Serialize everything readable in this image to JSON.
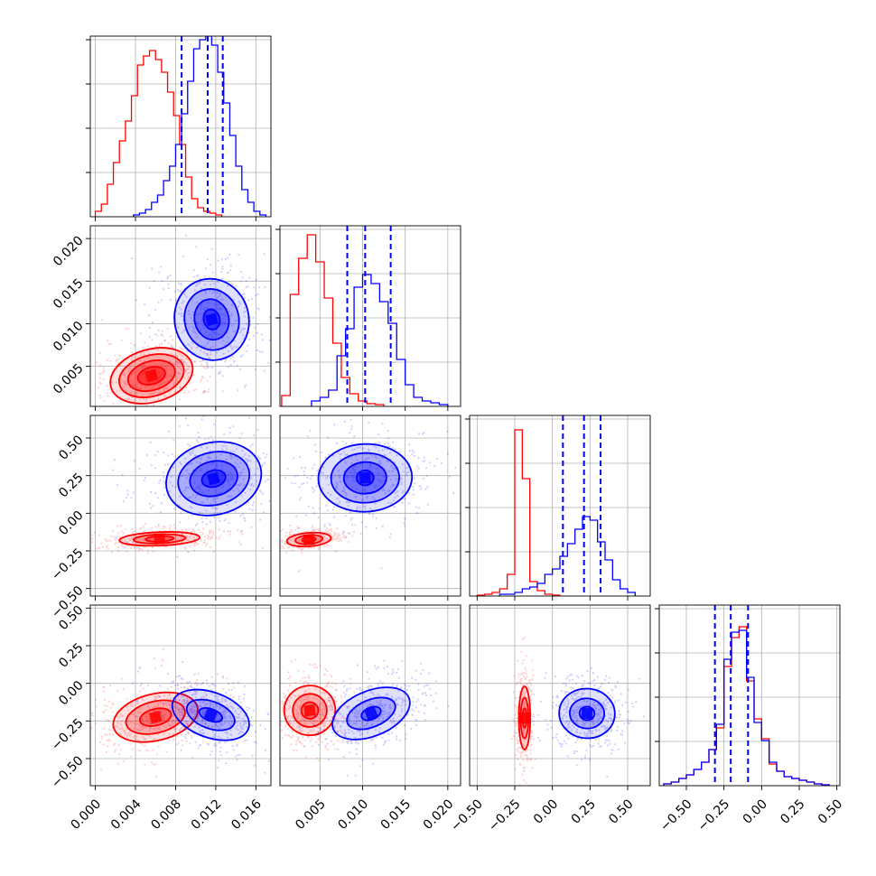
{
  "chart_data": {
    "type": "corner",
    "title": "",
    "colors": {
      "series_a": "#ff0000",
      "series_b": "#0000ff"
    },
    "params": [
      {
        "ticks": [
          "0.000",
          "0.004",
          "0.008",
          "0.012",
          "0.016"
        ],
        "tick_values": [
          0.0,
          0.004,
          0.008,
          0.012,
          0.016
        ],
        "range": [
          -0.0005,
          0.0175
        ]
      },
      {
        "ticks": [
          "0.005",
          "0.010",
          "0.015",
          "0.020"
        ],
        "tick_values": [
          0.005,
          0.01,
          0.015,
          0.02
        ],
        "range": [
          0.0003,
          0.0215
        ]
      },
      {
        "ticks": [
          "−0.50",
          "−0.25",
          "0.00",
          "0.25",
          "0.50"
        ],
        "tick_values": [
          -0.5,
          -0.25,
          0.0,
          0.25,
          0.5
        ],
        "range": [
          -0.55,
          0.65
        ]
      },
      {
        "ticks": [
          "−0.50",
          "−0.25",
          "0.00",
          "0.25",
          "0.50"
        ],
        "tick_values": [
          -0.5,
          -0.25,
          0.0,
          0.25,
          0.5
        ],
        "range": [
          -0.68,
          0.52
        ]
      }
    ],
    "series": [
      {
        "color": "red",
        "marginals": [
          {
            "bin_edges": [
              0.0,
              0.0006,
              0.0012,
              0.0018,
              0.0024,
              0.003,
              0.0036,
              0.0042,
              0.0048,
              0.0054,
              0.006,
              0.0066,
              0.0072,
              0.0078,
              0.0084,
              0.009,
              0.0096,
              0.0102,
              0.0108,
              0.0114,
              0.012,
              0.0126
            ],
            "counts": [
              0.03,
              0.07,
              0.18,
              0.3,
              0.42,
              0.53,
              0.67,
              0.84,
              0.89,
              0.92,
              0.87,
              0.8,
              0.69,
              0.56,
              0.4,
              0.22,
              0.1,
              0.05,
              0.03,
              0.02,
              0.01
            ]
          },
          {
            "bin_edges": [
              0.0005,
              0.0015,
              0.0025,
              0.0035,
              0.0045,
              0.0055,
              0.0065,
              0.0075,
              0.0085,
              0.0095,
              0.0105,
              0.0115,
              0.0125
            ],
            "counts": [
              0.06,
              0.62,
              0.82,
              0.95,
              0.8,
              0.6,
              0.35,
              0.16,
              0.07,
              0.03,
              0.015,
              0.01
            ]
          },
          {
            "bin_edges": [
              -0.5,
              -0.45,
              -0.4,
              -0.35,
              -0.3,
              -0.25,
              -0.2,
              -0.15,
              -0.1,
              -0.05,
              0.0,
              0.05
            ],
            "counts": [
              0.005,
              0.01,
              0.02,
              0.04,
              0.12,
              0.92,
              0.65,
              0.08,
              0.03,
              0.01,
              0.005
            ]
          },
          {
            "bin_edges": [
              -0.65,
              -0.6,
              -0.55,
              -0.5,
              -0.45,
              -0.4,
              -0.35,
              -0.3,
              -0.25,
              -0.2,
              -0.15,
              -0.1,
              -0.05,
              0.0,
              0.05,
              0.1,
              0.15,
              0.2,
              0.25,
              0.3,
              0.35,
              0.4,
              0.45
            ],
            "counts": [
              0.01,
              0.02,
              0.04,
              0.06,
              0.09,
              0.13,
              0.2,
              0.32,
              0.66,
              0.82,
              0.88,
              0.58,
              0.37,
              0.26,
              0.12,
              0.08,
              0.05,
              0.04,
              0.03,
              0.02,
              0.01,
              0.005
            ]
          }
        ],
        "pairs": [
          {
            "x": 0,
            "y": 1,
            "center": [
              0.0056,
              0.0039
            ],
            "levels": [
              [
                0.0014,
                0.001
              ],
              [
                0.0024,
                0.0017
              ],
              [
                0.0033,
                0.0024
              ],
              [
                0.0042,
                0.0031
              ]
            ],
            "tilt": 0.35
          },
          {
            "x": 0,
            "y": 2,
            "center": [
              0.0064,
              -0.17
            ],
            "levels": [
              [
                0.0014,
                0.018
              ],
              [
                0.0026,
                0.03
              ],
              [
                0.004,
                0.045
              ]
            ],
            "tilt": 0.05
          },
          {
            "x": 1,
            "y": 2,
            "center": [
              0.0037,
              -0.175
            ],
            "levels": [
              [
                0.0008,
                0.018
              ],
              [
                0.0016,
                0.03
              ],
              [
                0.0026,
                0.045
              ]
            ],
            "tilt": 0.1
          },
          {
            "x": 0,
            "y": 3,
            "center": [
              0.006,
              -0.225
            ],
            "levels": [
              [
                0.0016,
                0.055
              ],
              [
                0.003,
                0.105
              ],
              [
                0.0043,
                0.155
              ]
            ],
            "tilt": 0.3
          },
          {
            "x": 1,
            "y": 3,
            "center": [
              0.0038,
              -0.18
            ],
            "levels": [
              [
                0.001,
                0.055
              ],
              [
                0.002,
                0.11
              ],
              [
                0.003,
                0.165
              ]
            ],
            "tilt": 0.15
          },
          {
            "x": 2,
            "y": 3,
            "center": [
              -0.185,
              -0.23
            ],
            "levels": [
              [
                0.014,
                0.065
              ],
              [
                0.026,
                0.135
              ],
              [
                0.038,
                0.21
              ]
            ],
            "tilt": 0.0
          }
        ]
      },
      {
        "color": "blue",
        "quantiles": [
          [
            0.0086,
            0.0112,
            0.0127
          ],
          [
            0.0082,
            0.0103,
            0.0133
          ],
          [
            0.07,
            0.21,
            0.32
          ],
          [
            -0.31,
            -0.205,
            -0.09
          ]
        ],
        "marginals": [
          {
            "bin_edges": [
              0.0038,
              0.0044,
              0.005,
              0.0056,
              0.0062,
              0.0068,
              0.0074,
              0.008,
              0.0086,
              0.0092,
              0.0098,
              0.0104,
              0.011,
              0.0116,
              0.0122,
              0.0128,
              0.0134,
              0.014,
              0.0146,
              0.0152,
              0.0158,
              0.0164,
              0.017
            ],
            "counts": [
              0.01,
              0.02,
              0.04,
              0.08,
              0.12,
              0.2,
              0.28,
              0.4,
              0.57,
              0.75,
              0.93,
              0.98,
              1.0,
              0.95,
              0.8,
              0.63,
              0.45,
              0.28,
              0.15,
              0.08,
              0.03,
              0.01
            ]
          },
          {
            "bin_edges": [
              0.004,
              0.005,
              0.006,
              0.007,
              0.008,
              0.009,
              0.01,
              0.011,
              0.012,
              0.013,
              0.014,
              0.015,
              0.016,
              0.017,
              0.018,
              0.019,
              0.02
            ],
            "counts": [
              0.03,
              0.05,
              0.09,
              0.28,
              0.43,
              0.66,
              0.73,
              0.68,
              0.58,
              0.46,
              0.26,
              0.12,
              0.05,
              0.03,
              0.02,
              0.01
            ]
          },
          {
            "bin_edges": [
              -0.35,
              -0.3,
              -0.25,
              -0.2,
              -0.15,
              -0.1,
              -0.05,
              0.0,
              0.05,
              0.1,
              0.15,
              0.2,
              0.25,
              0.3,
              0.35,
              0.4,
              0.45,
              0.5,
              0.55
            ],
            "counts": [
              0.01,
              0.01,
              0.02,
              0.04,
              0.05,
              0.07,
              0.12,
              0.15,
              0.22,
              0.29,
              0.37,
              0.44,
              0.42,
              0.3,
              0.2,
              0.09,
              0.04,
              0.02
            ]
          },
          {
            "bin_edges": [
              -0.65,
              -0.6,
              -0.55,
              -0.5,
              -0.45,
              -0.4,
              -0.35,
              -0.3,
              -0.25,
              -0.2,
              -0.15,
              -0.1,
              -0.05,
              0.0,
              0.05,
              0.1,
              0.15,
              0.2,
              0.25,
              0.3,
              0.35,
              0.4,
              0.45
            ],
            "counts": [
              0.01,
              0.02,
              0.04,
              0.06,
              0.09,
              0.13,
              0.2,
              0.34,
              0.7,
              0.85,
              0.86,
              0.6,
              0.35,
              0.25,
              0.13,
              0.08,
              0.05,
              0.04,
              0.03,
              0.02,
              0.01,
              0.005
            ]
          }
        ],
        "pairs": [
          {
            "x": 0,
            "y": 1,
            "center": [
              0.0116,
              0.0105
            ],
            "levels": [
              [
                0.0008,
                0.0012
              ],
              [
                0.0017,
                0.0024
              ],
              [
                0.0027,
                0.0036
              ],
              [
                0.0037,
                0.0048
              ]
            ],
            "tilt": 0.3
          },
          {
            "x": 0,
            "y": 2,
            "center": [
              0.0118,
              0.23
            ],
            "levels": [
              [
                0.0012,
                0.055
              ],
              [
                0.0024,
                0.115
              ],
              [
                0.0036,
                0.175
              ],
              [
                0.0048,
                0.24
              ]
            ],
            "tilt": 0.3
          },
          {
            "x": 1,
            "y": 2,
            "center": [
              0.0103,
              0.235
            ],
            "levels": [
              [
                0.001,
                0.05
              ],
              [
                0.0025,
                0.105
              ],
              [
                0.004,
                0.165
              ],
              [
                0.0055,
                0.225
              ]
            ],
            "tilt": 0.05
          },
          {
            "x": 0,
            "y": 3,
            "center": [
              0.0115,
              -0.21
            ],
            "levels": [
              [
                0.0012,
                0.04
              ],
              [
                0.0025,
                0.09
              ],
              [
                0.004,
                0.15
              ]
            ],
            "tilt": -0.45
          },
          {
            "x": 1,
            "y": 3,
            "center": [
              0.011,
              -0.2
            ],
            "levels": [
              [
                0.0012,
                0.04
              ],
              [
                0.003,
                0.09
              ],
              [
                0.0048,
                0.15
              ]
            ],
            "tilt": 0.5
          },
          {
            "x": 2,
            "y": 3,
            "center": [
              0.23,
              -0.2
            ],
            "levels": [
              [
                0.05,
                0.045
              ],
              [
                0.115,
                0.1
              ],
              [
                0.185,
                0.165
              ]
            ],
            "tilt": -0.1
          }
        ]
      }
    ]
  }
}
